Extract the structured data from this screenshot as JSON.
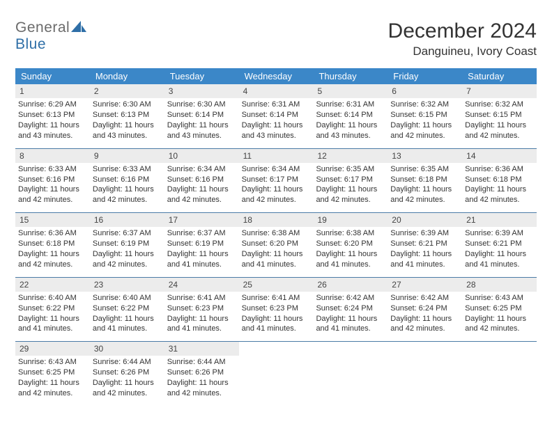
{
  "brand": {
    "part1": "General",
    "part2": "Blue"
  },
  "title": "December 2024",
  "location": "Danguineu, Ivory Coast",
  "colors": {
    "header_bg": "#3b87c8",
    "week_divider": "#4a7ba6",
    "daynum_bg": "#ececec",
    "logo_gray": "#6b6b6b",
    "logo_blue": "#2f6fa7"
  },
  "weekdays": [
    "Sunday",
    "Monday",
    "Tuesday",
    "Wednesday",
    "Thursday",
    "Friday",
    "Saturday"
  ],
  "days": [
    {
      "n": 1,
      "sr": "6:29 AM",
      "ss": "6:13 PM",
      "dl": "11 hours and 43 minutes."
    },
    {
      "n": 2,
      "sr": "6:30 AM",
      "ss": "6:13 PM",
      "dl": "11 hours and 43 minutes."
    },
    {
      "n": 3,
      "sr": "6:30 AM",
      "ss": "6:14 PM",
      "dl": "11 hours and 43 minutes."
    },
    {
      "n": 4,
      "sr": "6:31 AM",
      "ss": "6:14 PM",
      "dl": "11 hours and 43 minutes."
    },
    {
      "n": 5,
      "sr": "6:31 AM",
      "ss": "6:14 PM",
      "dl": "11 hours and 43 minutes."
    },
    {
      "n": 6,
      "sr": "6:32 AM",
      "ss": "6:15 PM",
      "dl": "11 hours and 42 minutes."
    },
    {
      "n": 7,
      "sr": "6:32 AM",
      "ss": "6:15 PM",
      "dl": "11 hours and 42 minutes."
    },
    {
      "n": 8,
      "sr": "6:33 AM",
      "ss": "6:16 PM",
      "dl": "11 hours and 42 minutes."
    },
    {
      "n": 9,
      "sr": "6:33 AM",
      "ss": "6:16 PM",
      "dl": "11 hours and 42 minutes."
    },
    {
      "n": 10,
      "sr": "6:34 AM",
      "ss": "6:16 PM",
      "dl": "11 hours and 42 minutes."
    },
    {
      "n": 11,
      "sr": "6:34 AM",
      "ss": "6:17 PM",
      "dl": "11 hours and 42 minutes."
    },
    {
      "n": 12,
      "sr": "6:35 AM",
      "ss": "6:17 PM",
      "dl": "11 hours and 42 minutes."
    },
    {
      "n": 13,
      "sr": "6:35 AM",
      "ss": "6:18 PM",
      "dl": "11 hours and 42 minutes."
    },
    {
      "n": 14,
      "sr": "6:36 AM",
      "ss": "6:18 PM",
      "dl": "11 hours and 42 minutes."
    },
    {
      "n": 15,
      "sr": "6:36 AM",
      "ss": "6:18 PM",
      "dl": "11 hours and 42 minutes."
    },
    {
      "n": 16,
      "sr": "6:37 AM",
      "ss": "6:19 PM",
      "dl": "11 hours and 42 minutes."
    },
    {
      "n": 17,
      "sr": "6:37 AM",
      "ss": "6:19 PM",
      "dl": "11 hours and 41 minutes."
    },
    {
      "n": 18,
      "sr": "6:38 AM",
      "ss": "6:20 PM",
      "dl": "11 hours and 41 minutes."
    },
    {
      "n": 19,
      "sr": "6:38 AM",
      "ss": "6:20 PM",
      "dl": "11 hours and 41 minutes."
    },
    {
      "n": 20,
      "sr": "6:39 AM",
      "ss": "6:21 PM",
      "dl": "11 hours and 41 minutes."
    },
    {
      "n": 21,
      "sr": "6:39 AM",
      "ss": "6:21 PM",
      "dl": "11 hours and 41 minutes."
    },
    {
      "n": 22,
      "sr": "6:40 AM",
      "ss": "6:22 PM",
      "dl": "11 hours and 41 minutes."
    },
    {
      "n": 23,
      "sr": "6:40 AM",
      "ss": "6:22 PM",
      "dl": "11 hours and 41 minutes."
    },
    {
      "n": 24,
      "sr": "6:41 AM",
      "ss": "6:23 PM",
      "dl": "11 hours and 41 minutes."
    },
    {
      "n": 25,
      "sr": "6:41 AM",
      "ss": "6:23 PM",
      "dl": "11 hours and 41 minutes."
    },
    {
      "n": 26,
      "sr": "6:42 AM",
      "ss": "6:24 PM",
      "dl": "11 hours and 41 minutes."
    },
    {
      "n": 27,
      "sr": "6:42 AM",
      "ss": "6:24 PM",
      "dl": "11 hours and 42 minutes."
    },
    {
      "n": 28,
      "sr": "6:43 AM",
      "ss": "6:25 PM",
      "dl": "11 hours and 42 minutes."
    },
    {
      "n": 29,
      "sr": "6:43 AM",
      "ss": "6:25 PM",
      "dl": "11 hours and 42 minutes."
    },
    {
      "n": 30,
      "sr": "6:44 AM",
      "ss": "6:26 PM",
      "dl": "11 hours and 42 minutes."
    },
    {
      "n": 31,
      "sr": "6:44 AM",
      "ss": "6:26 PM",
      "dl": "11 hours and 42 minutes."
    }
  ],
  "labels": {
    "sunrise": "Sunrise: ",
    "sunset": "Sunset: ",
    "daylight": "Daylight: "
  }
}
